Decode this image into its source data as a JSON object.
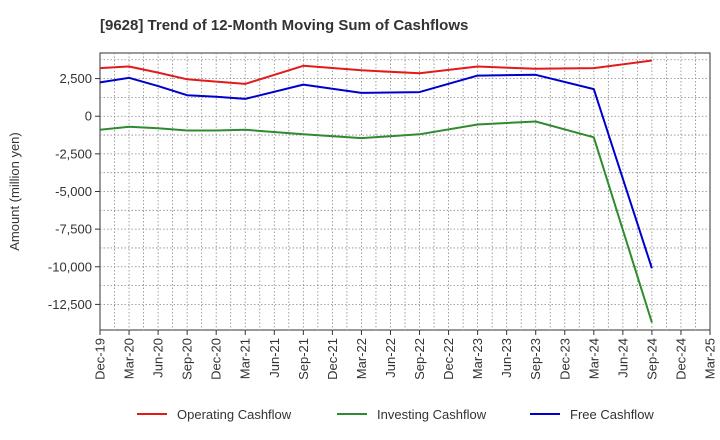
{
  "chart_data": {
    "type": "line",
    "title": "[9628]  Trend of 12-Month Moving Sum of Cashflows",
    "ylabel": "Amount (million yen)",
    "xlabel": "",
    "categories": [
      "Dec-19",
      "Mar-20",
      "Jun-20",
      "Sep-20",
      "Dec-20",
      "Mar-21",
      "Jun-21",
      "Sep-21",
      "Dec-21",
      "Mar-22",
      "Jun-22",
      "Sep-22",
      "Dec-22",
      "Mar-23",
      "Jun-23",
      "Sep-23",
      "Dec-23",
      "Mar-24",
      "Jun-24",
      "Sep-24",
      "Dec-24",
      "Mar-25"
    ],
    "yticks": [
      2500,
      0,
      -2500,
      -5000,
      -7500,
      -10000,
      -12500
    ],
    "ytick_labels": [
      "2,500",
      "0",
      "-2,500",
      "-5,000",
      "-7,500",
      "-10,000",
      "-12,500"
    ],
    "ylim": [
      -14200,
      4200
    ],
    "grid": true,
    "legend_position": "bottom",
    "series": [
      {
        "name": "Operating Cashflow",
        "color": "#e31a1c",
        "values": [
          3200,
          3300,
          2900,
          2450,
          2300,
          2150,
          null,
          3350,
          null,
          3050,
          null,
          2850,
          null,
          3300,
          null,
          3150,
          null,
          3200,
          null,
          3700,
          null,
          null
        ]
      },
      {
        "name": "Investing Cashflow",
        "color": "#2e8b2e",
        "values": [
          -900,
          -700,
          -800,
          -950,
          -950,
          -900,
          null,
          -1200,
          null,
          -1450,
          null,
          -1200,
          null,
          -550,
          null,
          -350,
          null,
          -1400,
          null,
          -13700,
          null,
          null
        ]
      },
      {
        "name": "Free Cashflow",
        "color": "#0000cc",
        "values": [
          2250,
          2550,
          2000,
          1400,
          1300,
          1150,
          null,
          2100,
          null,
          1550,
          null,
          1600,
          null,
          2700,
          null,
          2750,
          null,
          1800,
          null,
          -10100,
          null,
          null
        ]
      }
    ]
  }
}
